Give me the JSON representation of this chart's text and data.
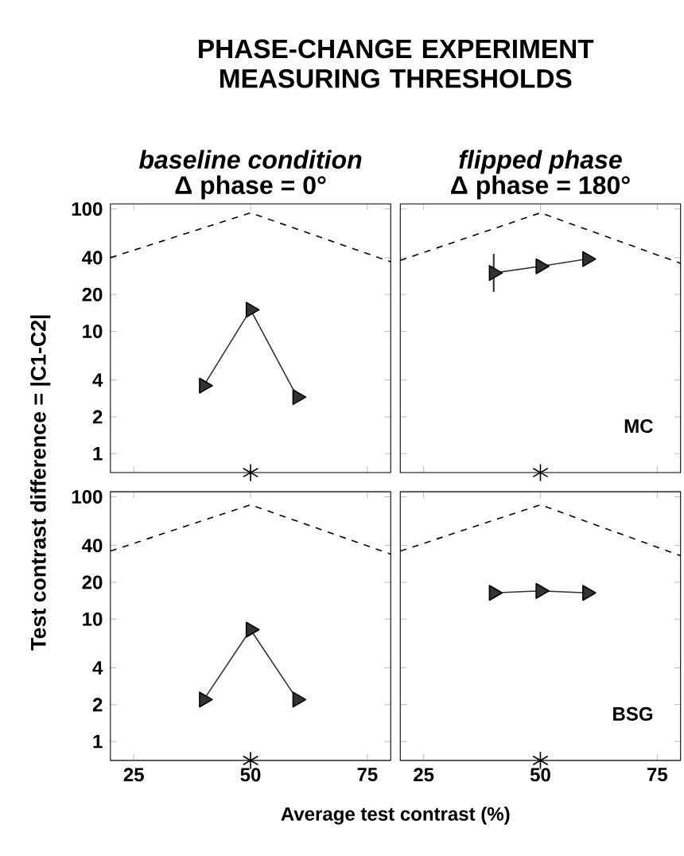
{
  "chart_data": [
    {
      "type": "line",
      "title": "PHASE-CHANGE EXPERIMENT MEASURING THRESHOLDS",
      "subtitle": "baseline condition",
      "annotations": [
        "Δ phase = 0°"
      ],
      "ylabel": "Test contrast difference = |C1-C2|",
      "xlim": [
        20,
        80
      ],
      "xticks": [
        25,
        50,
        75
      ],
      "ylim": [
        0.7,
        110
      ],
      "yticks": [
        1,
        2,
        4,
        10,
        20,
        40,
        100
      ],
      "log": "y",
      "tick_labels": "y",
      "series": [
        {
          "type": "line",
          "x": [
            20,
            50,
            80
          ],
          "values": [
            40,
            93,
            37
          ],
          "color": "#000000",
          "line_style": "dashed",
          "marker": "none"
        },
        {
          "x": [
            40,
            50,
            60
          ],
          "values": [
            3.6,
            15,
            2.9
          ],
          "color": "#333333",
          "marker": "triangle"
        },
        {
          "type": "scatter",
          "x": [
            50
          ],
          "values": [
            0.7
          ],
          "color": "#000000",
          "marker": "cross"
        }
      ]
    },
    {
      "type": "line",
      "subtitle": "flipped phase",
      "annotations": [
        "Δ phase = 180°",
        "MC"
      ],
      "xlim": [
        20,
        80
      ],
      "xticks": [
        25,
        50,
        75
      ],
      "ylim": [
        0.7,
        110
      ],
      "yticks": [
        1,
        2,
        4,
        10,
        20,
        40,
        100
      ],
      "log": "y",
      "tick_labels": false,
      "series": [
        {
          "type": "line",
          "x": [
            20,
            50,
            80
          ],
          "values": [
            38,
            93,
            36
          ],
          "color": "#000000",
          "line_style": "dashed",
          "marker": "none"
        },
        {
          "x": [
            40,
            50,
            60
          ],
          "values": [
            30,
            34,
            39
          ],
          "errors": [
            [
              21,
              43
            ],
            null,
            null
          ],
          "color": "#333333",
          "marker": "triangle"
        },
        {
          "type": "scatter",
          "x": [
            50
          ],
          "values": [
            0.7
          ],
          "color": "#000000",
          "marker": "cross"
        }
      ]
    },
    {
      "type": "line",
      "xlabel": "Average test contrast (%)",
      "xlim": [
        20,
        80
      ],
      "xticks": [
        25,
        50,
        75
      ],
      "ylim": [
        0.7,
        110
      ],
      "yticks": [
        1,
        2,
        4,
        10,
        20,
        40,
        100
      ],
      "log": "y",
      "series": [
        {
          "type": "line",
          "x": [
            20,
            50,
            80
          ],
          "values": [
            36,
            86,
            34
          ],
          "color": "#000000",
          "line_style": "dashed",
          "marker": "none"
        },
        {
          "x": [
            40,
            50,
            60
          ],
          "values": [
            2.2,
            8.2,
            2.2
          ],
          "color": "#333333",
          "marker": "triangle"
        },
        {
          "type": "scatter",
          "x": [
            50
          ],
          "values": [
            0.7
          ],
          "color": "#000000",
          "marker": "cross"
        }
      ]
    },
    {
      "type": "line",
      "annotations": [
        "BSG"
      ],
      "xlim": [
        20,
        80
      ],
      "xticks": [
        25,
        50,
        75
      ],
      "ylim": [
        0.7,
        110
      ],
      "yticks": [
        1,
        2,
        4,
        10,
        20,
        40,
        100
      ],
      "log": "y",
      "tick_labels": "x",
      "series": [
        {
          "type": "line",
          "x": [
            20,
            50,
            80
          ],
          "values": [
            36,
            86,
            33
          ],
          "color": "#000000",
          "line_style": "dashed",
          "marker": "none"
        },
        {
          "x": [
            40,
            50,
            60
          ],
          "values": [
            16.4,
            17,
            16.4
          ],
          "color": "#333333",
          "marker": "triangle"
        },
        {
          "type": "scatter",
          "x": [
            50
          ],
          "values": [
            0.7
          ],
          "color": "#000000",
          "marker": "cross"
        }
      ]
    }
  ]
}
